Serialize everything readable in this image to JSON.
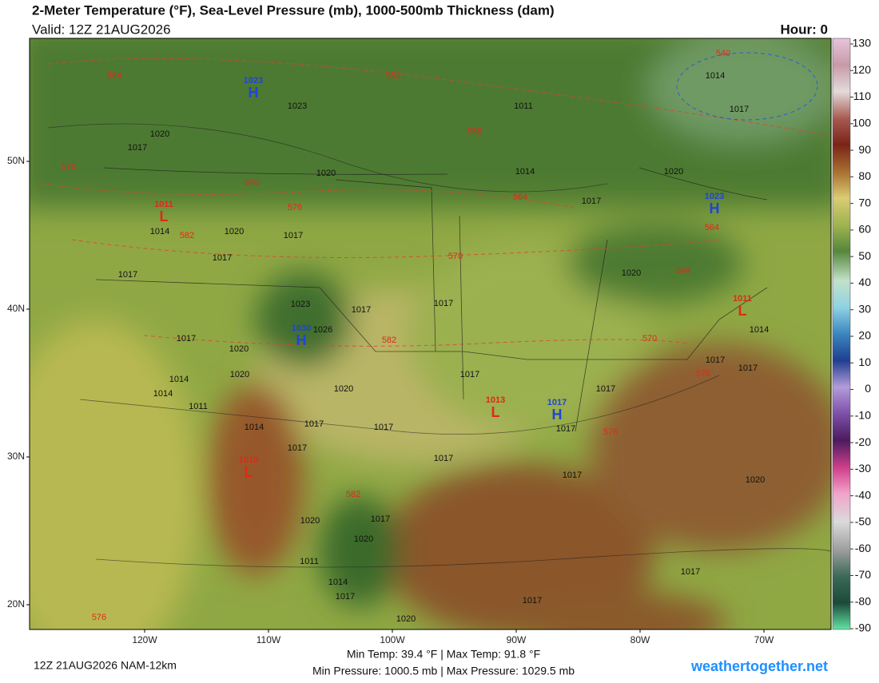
{
  "header": {
    "title": "2-Meter Temperature (°F), Sea-Level Pressure (mb), 1000-500mb Thickness (dam)",
    "valid": "Valid: 12Z 21AUG2026",
    "hour": "Hour: 0"
  },
  "colorbar": {
    "lim": [
      -90,
      130
    ],
    "ticks": [
      130,
      120,
      110,
      100,
      90,
      80,
      70,
      60,
      50,
      40,
      30,
      20,
      10,
      0,
      -10,
      -20,
      -30,
      -40,
      -50,
      -60,
      -70,
      -80,
      -90
    ]
  },
  "axes": {
    "lat_ticks": [
      {
        "value": 50,
        "label": "50N"
      },
      {
        "value": 40,
        "label": "40N"
      },
      {
        "value": 30,
        "label": "30N"
      },
      {
        "value": 20,
        "label": "20N"
      }
    ],
    "lon_ticks": [
      {
        "value": -120,
        "label": "120W"
      },
      {
        "value": -110,
        "label": "110W"
      },
      {
        "value": -100,
        "label": "100W"
      },
      {
        "value": -90,
        "label": "90W"
      },
      {
        "value": -80,
        "label": "80W"
      },
      {
        "value": -70,
        "label": "70W"
      }
    ]
  },
  "pressure_centers": [
    {
      "symbol": "H",
      "pressure": 1023
    },
    {
      "symbol": "L",
      "pressure": 1011
    },
    {
      "symbol": "H",
      "pressure": 1023
    },
    {
      "symbol": "L",
      "pressure": 1011
    },
    {
      "symbol": "H",
      "pressure": 1030
    },
    {
      "symbol": "L",
      "pressure": 1013
    },
    {
      "symbol": "H",
      "pressure": 1017
    },
    {
      "symbol": "L",
      "pressure": 1010
    }
  ],
  "isobar_labels": [
    1014,
    1017,
    1023,
    1011,
    1020,
    1017,
    1020,
    1014,
    1017,
    1020,
    1014,
    1020,
    1017,
    1017,
    1017,
    1023,
    1017,
    1017,
    1020,
    1017,
    1020,
    1026,
    1014,
    1020,
    1014,
    1020,
    1017,
    1017,
    1017,
    1017,
    1014,
    1011,
    1014,
    1017,
    1017,
    1017,
    1017,
    1017,
    1017,
    1020,
    1020,
    1017,
    1020,
    1011,
    1014,
    1017,
    1017,
    1017,
    1020
  ],
  "thickness_labels": [
    564,
    552,
    540,
    558,
    570,
    570,
    576,
    564,
    582,
    564,
    570,
    564,
    582,
    570,
    576,
    576,
    582,
    576
  ],
  "footer": {
    "run": "12Z 21AUG2026 NAM-12km",
    "temps": "Min Temp:  39.4 °F | Max Temp:  91.8 °F",
    "pressures": "Min Pressure: 1000.5 mb | Max Pressure: 1029.5 mb",
    "site": "weathertogether.net"
  }
}
